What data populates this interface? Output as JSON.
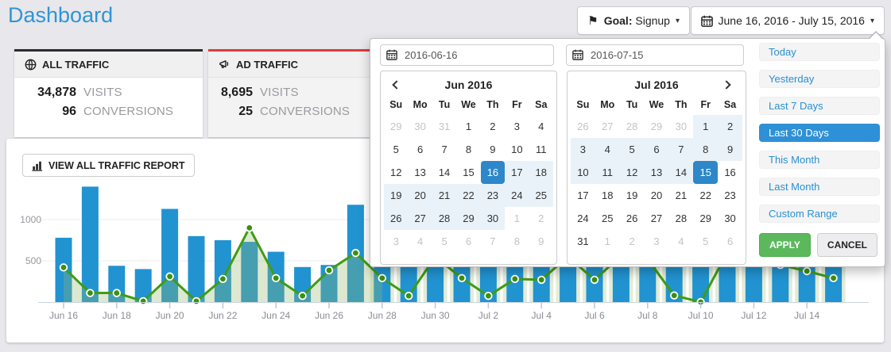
{
  "page": {
    "title": "Dashboard"
  },
  "toolbar": {
    "goal_label": "Goal:",
    "goal_value": "Signup",
    "date_range": "June 16, 2016 - July 15, 2016"
  },
  "cards": [
    {
      "title": "ALL TRAFFIC",
      "visits": "34,878",
      "visits_label": "VISITS",
      "conversions": "96",
      "conversions_label": "CONVERSIONS",
      "accent": "#2b2b2b",
      "icon": "globe-icon"
    },
    {
      "title": "AD TRAFFIC",
      "visits": "8,695",
      "visits_label": "VISITS",
      "conversions": "25",
      "conversions_label": "CONVERSIONS",
      "accent": "#dd3c3c",
      "icon": "megaphone-icon"
    }
  ],
  "chart_card": {
    "report_button": "VIEW ALL TRAFFIC REPORT"
  },
  "chart_data": {
    "type": "bar+line",
    "categories": [
      "Jun 16",
      "Jun 17",
      "Jun 18",
      "Jun 19",
      "Jun 20",
      "Jun 21",
      "Jun 22",
      "Jun 23",
      "Jun 24",
      "Jun 25",
      "Jun 26",
      "Jun 27",
      "Jun 28",
      "Jun 29",
      "Jun 30",
      "Jul 1",
      "Jul 2",
      "Jul 3",
      "Jul 4",
      "Jul 5",
      "Jul 6",
      "Jul 7",
      "Jul 8",
      "Jul 9",
      "Jul 10",
      "Jul 11",
      "Jul 12",
      "Jul 13",
      "Jul 14",
      "Jul 15"
    ],
    "series": [
      {
        "name": "visits",
        "type": "bar",
        "color": "#2193d1",
        "values": [
          780,
          1400,
          440,
          400,
          1130,
          800,
          750,
          730,
          610,
          425,
          450,
          1180,
          620,
          540,
          580,
          620,
          500,
          540,
          580,
          620,
          660,
          540,
          580,
          620,
          700,
          520,
          580,
          620,
          540,
          500
        ]
      },
      {
        "name": "conversions",
        "type": "line",
        "color": "#3f9c14",
        "area": "rgba(150,185,110,0.32)",
        "pale_bar": "#e3ecd7",
        "values": [
          420,
          110,
          110,
          10,
          310,
          10,
          280,
          900,
          290,
          75,
          385,
          595,
          290,
          75,
          550,
          290,
          75,
          280,
          270,
          550,
          270,
          560,
          520,
          80,
          0,
          600,
          550,
          450,
          375,
          290
        ]
      }
    ],
    "xlabel": "",
    "ylabel": "",
    "yticks": [
      500,
      1000
    ],
    "ylim": [
      0,
      1450
    ],
    "x_label_every": 2,
    "grid": "on",
    "legend": "none",
    "overlay_covered_from_index": 12
  },
  "datepicker": {
    "start": "2016-06-16",
    "end": "2016-07-15",
    "day_headers": [
      "Su",
      "Mo",
      "Tu",
      "We",
      "Th",
      "Fr",
      "Sa"
    ],
    "months": [
      {
        "title": "Jun 2016",
        "weeks": [
          [
            [
              "29",
              "m"
            ],
            [
              "30",
              "m"
            ],
            [
              "31",
              "m"
            ],
            [
              "1",
              "n"
            ],
            [
              "2",
              "n"
            ],
            [
              "3",
              "n"
            ],
            [
              "4",
              "n"
            ]
          ],
          [
            [
              "5",
              "n"
            ],
            [
              "6",
              "n"
            ],
            [
              "7",
              "n"
            ],
            [
              "8",
              "n"
            ],
            [
              "9",
              "n"
            ],
            [
              "10",
              "n"
            ],
            [
              "11",
              "n"
            ]
          ],
          [
            [
              "12",
              "n"
            ],
            [
              "13",
              "n"
            ],
            [
              "14",
              "n"
            ],
            [
              "15",
              "n"
            ],
            [
              "16",
              "s"
            ],
            [
              "17",
              "r"
            ],
            [
              "18",
              "r"
            ]
          ],
          [
            [
              "19",
              "r"
            ],
            [
              "20",
              "r"
            ],
            [
              "21",
              "r"
            ],
            [
              "22",
              "r"
            ],
            [
              "23",
              "r"
            ],
            [
              "24",
              "r"
            ],
            [
              "25",
              "r"
            ]
          ],
          [
            [
              "26",
              "r"
            ],
            [
              "27",
              "r"
            ],
            [
              "28",
              "r"
            ],
            [
              "29",
              "r"
            ],
            [
              "30",
              "r"
            ],
            [
              "1",
              "m"
            ],
            [
              "2",
              "m"
            ]
          ],
          [
            [
              "3",
              "m"
            ],
            [
              "4",
              "m"
            ],
            [
              "5",
              "m"
            ],
            [
              "6",
              "m"
            ],
            [
              "7",
              "m"
            ],
            [
              "8",
              "m"
            ],
            [
              "9",
              "m"
            ]
          ]
        ]
      },
      {
        "title": "Jul 2016",
        "weeks": [
          [
            [
              "26",
              "m"
            ],
            [
              "27",
              "m"
            ],
            [
              "28",
              "m"
            ],
            [
              "29",
              "m"
            ],
            [
              "30",
              "m"
            ],
            [
              "1",
              "r"
            ],
            [
              "2",
              "r"
            ]
          ],
          [
            [
              "3",
              "r"
            ],
            [
              "4",
              "r"
            ],
            [
              "5",
              "r"
            ],
            [
              "6",
              "r"
            ],
            [
              "7",
              "r"
            ],
            [
              "8",
              "r"
            ],
            [
              "9",
              "r"
            ]
          ],
          [
            [
              "10",
              "r"
            ],
            [
              "11",
              "r"
            ],
            [
              "12",
              "r"
            ],
            [
              "13",
              "r"
            ],
            [
              "14",
              "r"
            ],
            [
              "15",
              "s"
            ],
            [
              "16",
              "n"
            ]
          ],
          [
            [
              "17",
              "n"
            ],
            [
              "18",
              "n"
            ],
            [
              "19",
              "n"
            ],
            [
              "20",
              "n"
            ],
            [
              "21",
              "n"
            ],
            [
              "22",
              "n"
            ],
            [
              "23",
              "n"
            ]
          ],
          [
            [
              "24",
              "n"
            ],
            [
              "25",
              "n"
            ],
            [
              "26",
              "n"
            ],
            [
              "27",
              "n"
            ],
            [
              "28",
              "n"
            ],
            [
              "29",
              "n"
            ],
            [
              "30",
              "n"
            ]
          ],
          [
            [
              "31",
              "n"
            ],
            [
              "1",
              "m"
            ],
            [
              "2",
              "m"
            ],
            [
              "3",
              "m"
            ],
            [
              "4",
              "m"
            ],
            [
              "5",
              "m"
            ],
            [
              "6",
              "m"
            ]
          ]
        ]
      }
    ],
    "ranges": [
      "Today",
      "Yesterday",
      "Last 7 Days",
      "Last 30 Days",
      "This Month",
      "Last Month",
      "Custom Range"
    ],
    "active_range": "Last 30 Days",
    "apply": "APPLY",
    "cancel": "CANCEL"
  }
}
